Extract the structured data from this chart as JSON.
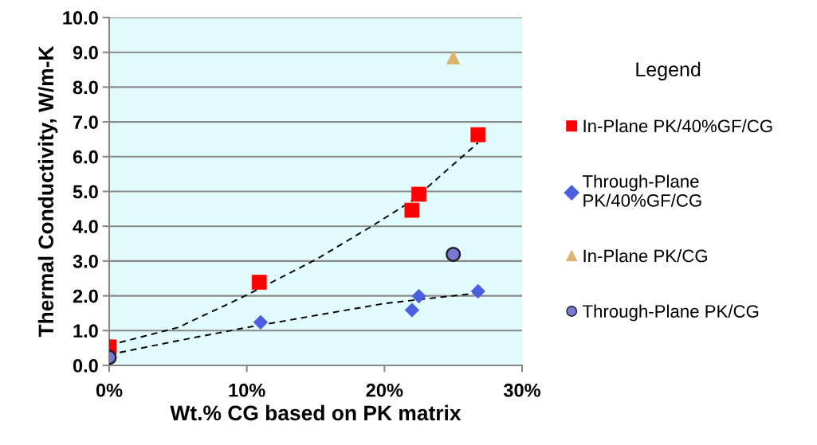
{
  "chart_data": {
    "type": "scatter",
    "xlabel": "Wt.% CG based on PK matrix",
    "ylabel": "Thermal Conductivity, W/m-K",
    "legend_title": "Legend",
    "legend": "right",
    "grid": "y",
    "xlim": [
      0,
      30
    ],
    "xticks": [
      {
        "value": 0,
        "label": "0%"
      },
      {
        "value": 10,
        "label": "10%"
      },
      {
        "value": 20,
        "label": "20%"
      },
      {
        "value": 30,
        "label": "30%"
      }
    ],
    "ylim": [
      0,
      10
    ],
    "yticks": [
      {
        "value": 0,
        "label": "0.0"
      },
      {
        "value": 1,
        "label": "1.0"
      },
      {
        "value": 2,
        "label": "2.0"
      },
      {
        "value": 3,
        "label": "3.0"
      },
      {
        "value": 4,
        "label": "4.0"
      },
      {
        "value": 5,
        "label": "5.0"
      },
      {
        "value": 6,
        "label": "6.0"
      },
      {
        "value": 7,
        "label": "7.0"
      },
      {
        "value": 8,
        "label": "8.0"
      },
      {
        "value": 9,
        "label": "9.0"
      },
      {
        "value": 10,
        "label": "10.0"
      }
    ],
    "series": [
      {
        "type": "line",
        "line_style": "dashed",
        "marker": "none",
        "color": "#000000",
        "x": [
          0,
          5,
          10,
          15.1,
          19.2,
          22,
          26.8
        ],
        "values": [
          0.58,
          1.09,
          2.02,
          3.06,
          4.03,
          4.73,
          6.4
        ]
      },
      {
        "type": "line",
        "line_style": "dashed",
        "marker": "none",
        "color": "#000000",
        "x": [
          0,
          5,
          10,
          20,
          26.8
        ],
        "values": [
          0.31,
          0.71,
          1.09,
          1.78,
          2.08
        ]
      },
      {
        "name": "In-Plane PK/40%GF/CG",
        "marker": "square",
        "color": "#ff0000",
        "x": [
          0,
          10.9,
          22,
          22.5,
          26.8
        ],
        "values": [
          0.53,
          2.39,
          4.46,
          4.92,
          6.63
        ]
      },
      {
        "name": "Through-Plane\nPK/40%GF/CG",
        "marker": "diamond",
        "color": "#4a5fe0",
        "x": [
          11,
          22,
          22.5,
          26.8
        ],
        "values": [
          1.24,
          1.59,
          1.99,
          2.13
        ]
      },
      {
        "name": "In-Plane PK/CG",
        "marker": "triangle",
        "color": "#ddb46e",
        "x": [
          25
        ],
        "values": [
          8.85
        ]
      },
      {
        "name": "Through-Plane PK/CG",
        "marker": "circle",
        "color": "#7b77d6",
        "x": [
          0,
          25
        ],
        "values": [
          0.23,
          3.19
        ]
      }
    ]
  }
}
